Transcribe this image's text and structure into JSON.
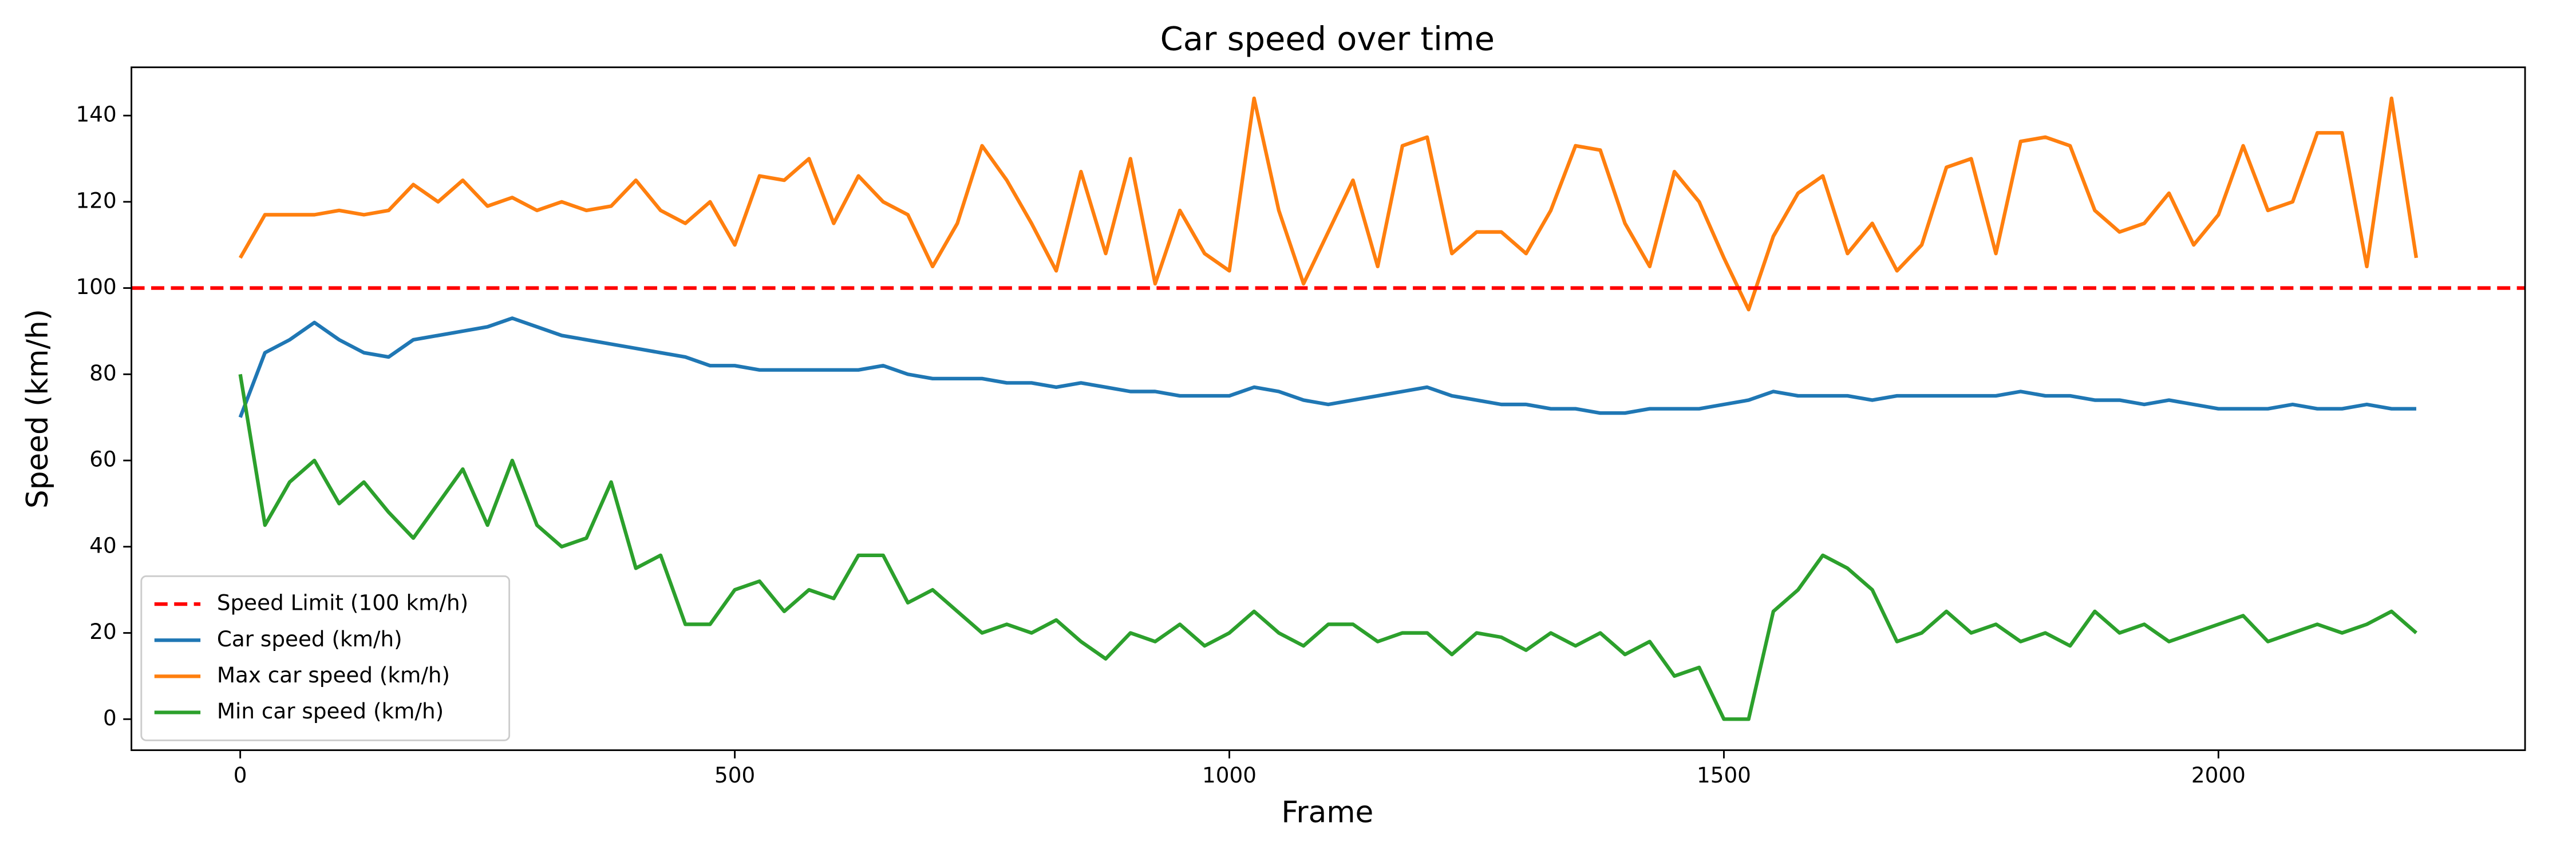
{
  "chart_data": {
    "type": "line",
    "title": "Car speed over time",
    "x_label": "Frame",
    "y_label": "Speed (km/h)",
    "x": [
      0,
      25,
      50,
      75,
      100,
      125,
      150,
      175,
      200,
      225,
      250,
      275,
      300,
      325,
      350,
      375,
      400,
      425,
      450,
      475,
      500,
      525,
      550,
      575,
      600,
      625,
      650,
      675,
      700,
      725,
      750,
      775,
      800,
      825,
      850,
      875,
      900,
      925,
      950,
      975,
      1000,
      1025,
      1050,
      1075,
      1100,
      1125,
      1150,
      1175,
      1200,
      1225,
      1250,
      1275,
      1300,
      1325,
      1350,
      1375,
      1400,
      1425,
      1450,
      1475,
      1500,
      1525,
      1550,
      1575,
      1600,
      1625,
      1650,
      1675,
      1700,
      1725,
      1750,
      1775,
      1800,
      1825,
      1850,
      1875,
      1900,
      1925,
      1950,
      1975,
      2000,
      2025,
      2050,
      2075,
      2100,
      2125,
      2150,
      2175,
      2200
    ],
    "reference_line": {
      "name": "Speed Limit (100 km/h)",
      "value": 100,
      "color": "#ff0000",
      "dashed": true
    },
    "series": [
      {
        "name": "Car speed (km/h)",
        "color": "#1f77b4",
        "values": [
          70,
          85,
          88,
          92,
          88,
          85,
          84,
          88,
          89,
          90,
          91,
          93,
          91,
          89,
          88,
          87,
          86,
          85,
          84,
          82,
          82,
          81,
          81,
          81,
          81,
          81,
          82,
          80,
          79,
          79,
          79,
          78,
          78,
          77,
          78,
          77,
          76,
          76,
          75,
          75,
          75,
          77,
          76,
          74,
          73,
          74,
          75,
          76,
          77,
          75,
          74,
          73,
          73,
          72,
          72,
          71,
          71,
          72,
          72,
          72,
          73,
          74,
          76,
          75,
          75,
          75,
          74,
          75,
          75,
          75,
          75,
          75,
          76,
          75,
          75,
          74,
          74,
          73,
          74,
          73,
          72,
          72,
          72,
          73,
          72,
          72,
          73,
          72,
          72
        ]
      },
      {
        "name": "Max car speed (km/h)",
        "color": "#ff7f0e",
        "values": [
          107,
          117,
          117,
          117,
          118,
          117,
          118,
          124,
          120,
          125,
          119,
          121,
          118,
          120,
          118,
          119,
          125,
          118,
          115,
          120,
          110,
          126,
          125,
          130,
          115,
          126,
          120,
          117,
          105,
          115,
          133,
          125,
          115,
          104,
          127,
          108,
          130,
          101,
          118,
          108,
          104,
          144,
          118,
          101,
          113,
          125,
          105,
          133,
          135,
          108,
          113,
          113,
          108,
          118,
          133,
          132,
          115,
          105,
          127,
          120,
          107,
          95,
          112,
          122,
          126,
          108,
          115,
          104,
          110,
          128,
          130,
          108,
          134,
          135,
          133,
          118,
          113,
          115,
          122,
          110,
          117,
          133,
          118,
          120,
          136,
          136,
          105,
          144,
          107
        ]
      },
      {
        "name": "Min car speed (km/h)",
        "color": "#2ca02c",
        "values": [
          80,
          45,
          55,
          60,
          50,
          55,
          48,
          42,
          50,
          58,
          45,
          60,
          45,
          40,
          42,
          55,
          35,
          38,
          22,
          22,
          30,
          32,
          25,
          30,
          28,
          38,
          38,
          27,
          30,
          25,
          20,
          22,
          20,
          23,
          18,
          14,
          20,
          18,
          22,
          17,
          20,
          25,
          20,
          17,
          22,
          22,
          18,
          20,
          20,
          15,
          20,
          19,
          16,
          20,
          17,
          20,
          15,
          18,
          10,
          12,
          0,
          0,
          25,
          30,
          38,
          35,
          30,
          18,
          20,
          25,
          20,
          22,
          18,
          20,
          17,
          25,
          20,
          22,
          18,
          20,
          22,
          24,
          18,
          20,
          22,
          20,
          22,
          25,
          20
        ]
      }
    ],
    "xlim": [
      -110,
      2310
    ],
    "ylim": [
      -7.2,
      151.2
    ],
    "xticks": [
      0,
      500,
      1000,
      1500,
      2000
    ],
    "yticks": [
      0,
      20,
      40,
      60,
      80,
      100,
      120,
      140
    ],
    "legend": "lower left"
  }
}
